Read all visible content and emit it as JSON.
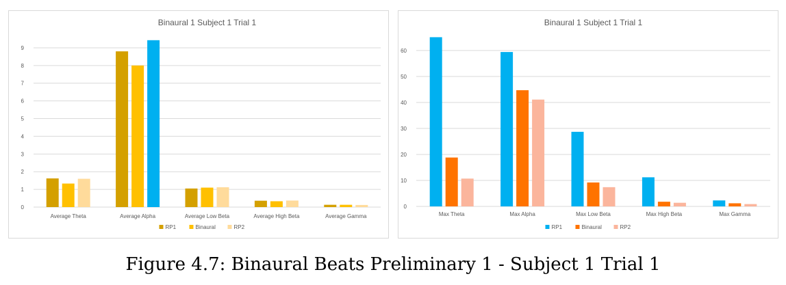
{
  "figure_caption": "Figure 4.7: Binaural Beats Preliminary 1 - Subject 1 Trial 1",
  "chart_data": [
    {
      "type": "bar",
      "title": "Binaural 1 Subject 1 Trial 1",
      "categories": [
        "Average Theta",
        "Average Alpha",
        "Average Low Beta",
        "Average High Beta",
        "Average Gamma"
      ],
      "series": [
        {
          "name": "RP1",
          "color": "#d4a000",
          "values": [
            1.62,
            8.8,
            1.05,
            0.36,
            0.13
          ]
        },
        {
          "name": "Binaural",
          "color": "#ffc000",
          "values": [
            1.33,
            8.0,
            1.1,
            0.33,
            0.13
          ]
        },
        {
          "name": "RP2",
          "color": "#ffdb9b",
          "values": [
            1.6,
            9.43,
            1.12,
            0.37,
            0.12
          ],
          "point_colors": [
            null,
            "#00b0f0",
            null,
            null,
            null
          ]
        }
      ],
      "yticks": [
        0,
        1,
        2,
        3,
        4,
        5,
        6,
        7,
        8,
        9
      ],
      "ylim": [
        0,
        9.5
      ],
      "grid": true,
      "legend": "bottom"
    },
    {
      "type": "bar",
      "title": "Binaural 1 Subject 1 Trial 1",
      "categories": [
        "Max Theta",
        "Max Alpha",
        "Max Low Beta",
        "Max High Beta",
        "Max Gamma"
      ],
      "series": [
        {
          "name": "RP1",
          "color": "#00b0f0",
          "values": [
            65.1,
            59.4,
            28.7,
            11.2,
            2.3
          ]
        },
        {
          "name": "Binaural",
          "color": "#ff7300",
          "values": [
            18.8,
            44.7,
            9.2,
            1.8,
            1.2
          ]
        },
        {
          "name": "RP2",
          "color": "#fbb59c",
          "values": [
            10.7,
            41.1,
            7.4,
            1.4,
            0.9
          ]
        }
      ],
      "yticks": [
        0,
        10,
        20,
        30,
        40,
        50,
        60
      ],
      "ylim": [
        0,
        66
      ],
      "grid": true,
      "legend": "bottom"
    }
  ]
}
